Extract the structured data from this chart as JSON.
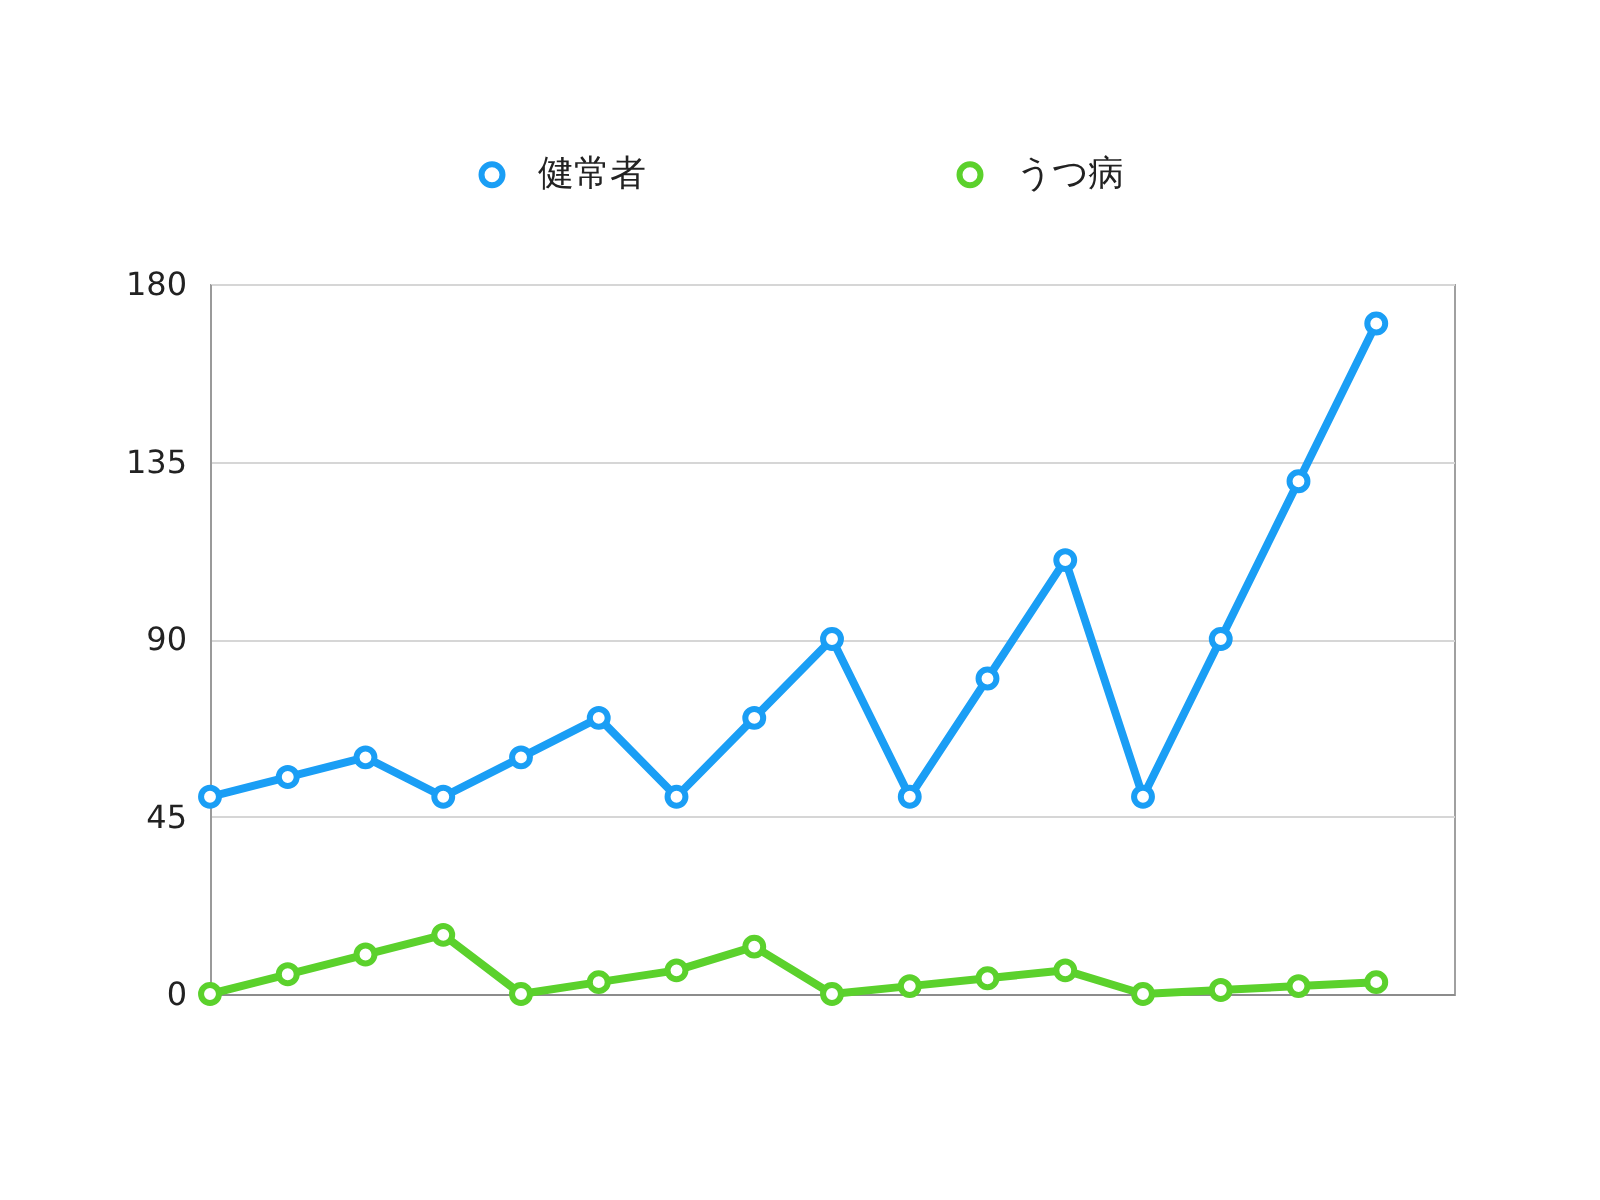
{
  "chart_data": {
    "type": "line",
    "categories": [
      null,
      null,
      null,
      null,
      null,
      null,
      null,
      null,
      null,
      null,
      null,
      null,
      null,
      null,
      null,
      null
    ],
    "series": [
      {
        "name": "健常者",
        "color": "#1a9ef5",
        "values": [
          50,
          55,
          60,
          50,
          60,
          70,
          50,
          70,
          90,
          50,
          80,
          110,
          50,
          90,
          130,
          170
        ]
      },
      {
        "name": "うつ病",
        "color": "#5bd12c",
        "values": [
          0,
          5,
          10,
          15,
          0,
          3,
          6,
          12,
          0,
          2,
          4,
          6,
          0,
          1,
          2,
          3
        ]
      }
    ],
    "ylim": [
      0,
      180
    ],
    "yticks": [
      0,
      45,
      90,
      135,
      180
    ],
    "grid": "y",
    "legend": "top",
    "marker": "circle",
    "line_style": "solid",
    "tick_labels": "y"
  }
}
